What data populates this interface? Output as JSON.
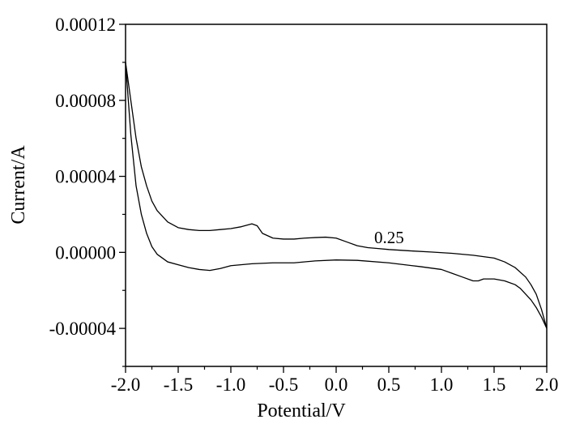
{
  "chart_data": {
    "type": "line",
    "title": "",
    "xlabel": "Potential/V",
    "ylabel": "Current/A",
    "xlim": [
      -2.0,
      2.0
    ],
    "ylim": [
      -6e-05,
      0.00012
    ],
    "x_ticks": [
      "-2.0",
      "-1.5",
      "-1.0",
      "-0.5",
      "0.0",
      "0.5",
      "1.0",
      "1.5",
      "2.0"
    ],
    "y_ticks": [
      "-0.00004",
      "0.00000",
      "0.00004",
      "0.00008",
      "0.00012"
    ],
    "grid": false,
    "annotation": "0.25",
    "series": [
      {
        "color": "#000000",
        "x": [
          -2.0,
          -1.95,
          -1.9,
          -1.85,
          -1.8,
          -1.75,
          -1.7,
          -1.6,
          -1.5,
          -1.4,
          -1.3,
          -1.2,
          -1.1,
          -1.0,
          -0.9,
          -0.8,
          -0.75,
          -0.7,
          -0.6,
          -0.5,
          -0.4,
          -0.3,
          -0.2,
          -0.1,
          0.0,
          0.1,
          0.2,
          0.3,
          0.4,
          0.5,
          0.7,
          0.9,
          1.1,
          1.3,
          1.5,
          1.6,
          1.7,
          1.8,
          1.85,
          1.9,
          1.95,
          2.0
        ],
        "y": [
          0.0001,
          8e-05,
          6e-05,
          4.5e-05,
          3.5e-05,
          2.7e-05,
          2.2e-05,
          1.6e-05,
          1.3e-05,
          1.2e-05,
          1.15e-05,
          1.15e-05,
          1.2e-05,
          1.25e-05,
          1.35e-05,
          1.5e-05,
          1.4e-05,
          1e-05,
          7.5e-06,
          7e-06,
          7e-06,
          7.5e-06,
          7.8e-06,
          8e-06,
          7.5e-06,
          5.5e-06,
          3.5e-06,
          2.5e-06,
          2e-06,
          1.5e-06,
          8e-07,
          2e-07,
          -5e-07,
          -1.5e-06,
          -3e-06,
          -5e-06,
          -8e-06,
          -1.3e-05,
          -1.7e-05,
          -2.2e-05,
          -3e-05,
          -4e-05
        ]
      },
      {
        "color": "#000000",
        "x": [
          2.0,
          1.95,
          1.9,
          1.85,
          1.8,
          1.75,
          1.7,
          1.6,
          1.5,
          1.4,
          1.35,
          1.3,
          1.2,
          1.1,
          1.0,
          0.8,
          0.5,
          0.2,
          0.0,
          -0.2,
          -0.4,
          -0.6,
          -0.8,
          -1.0,
          -1.1,
          -1.2,
          -1.3,
          -1.4,
          -1.5,
          -1.6,
          -1.7,
          -1.75,
          -1.8,
          -1.85,
          -1.9,
          -1.95,
          -2.0
        ],
        "y": [
          -4e-05,
          -3.4e-05,
          -2.9e-05,
          -2.5e-05,
          -2.2e-05,
          -1.9e-05,
          -1.7e-05,
          -1.5e-05,
          -1.4e-05,
          -1.4e-05,
          -1.5e-05,
          -1.5e-05,
          -1.3e-05,
          -1.1e-05,
          -9e-06,
          -7.5e-06,
          -5.5e-06,
          -4.2e-06,
          -4e-06,
          -4.5e-06,
          -5.5e-06,
          -5.5e-06,
          -6e-06,
          -7e-06,
          -8.5e-06,
          -9.5e-06,
          -9e-06,
          -8e-06,
          -6.5e-06,
          -5e-06,
          -1e-06,
          3e-06,
          1e-05,
          2e-05,
          3.5e-05,
          6.2e-05,
          0.0001
        ]
      }
    ]
  }
}
